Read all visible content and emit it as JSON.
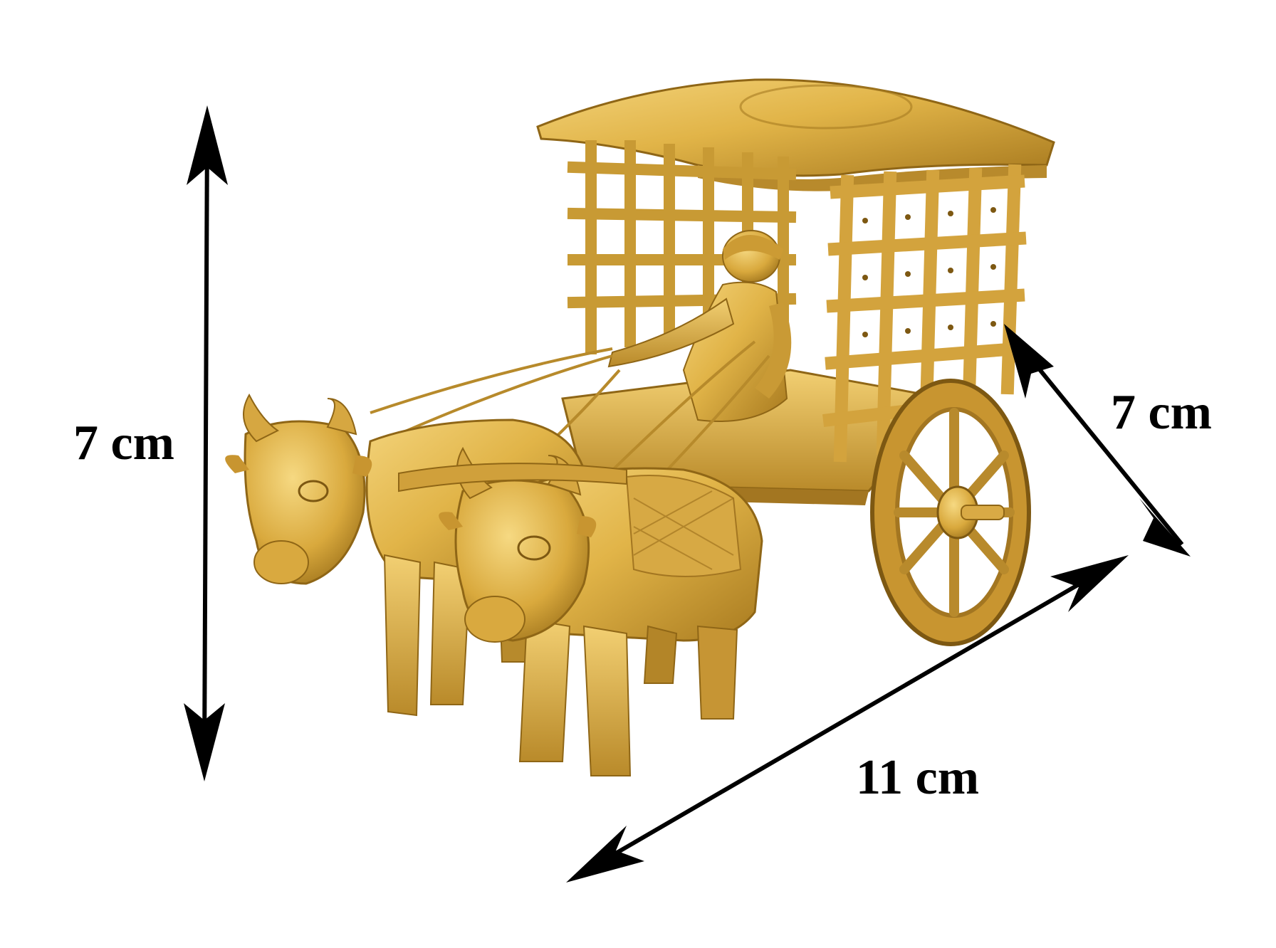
{
  "dimensions": {
    "height_label": "7 cm",
    "depth_label": "7 cm",
    "length_label": "11 cm"
  },
  "figure": {
    "subject": "brass-bullock-cart-figurine",
    "icons": [
      "dimension-arrow-icon"
    ]
  },
  "colors": {
    "brass_light": "#e9bf55",
    "brass_mid": "#d1a033",
    "brass_dark": "#9a6f19",
    "arrow": "#000000",
    "background": "#ffffff"
  }
}
